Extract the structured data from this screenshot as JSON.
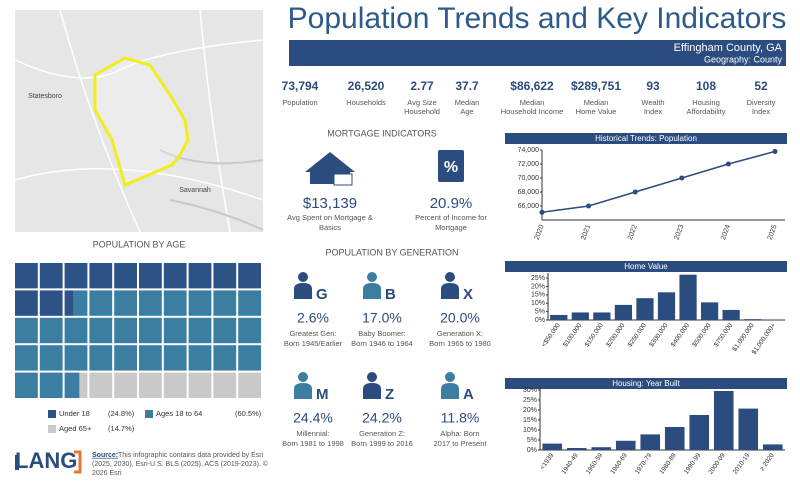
{
  "header": {
    "title": "Population Trends and Key Indicators",
    "location": "Effingham County, GA",
    "geography": "Geography: County"
  },
  "map": {
    "labels": [
      "Statesboro",
      "Savannah"
    ]
  },
  "indicators": [
    {
      "value": "73,794",
      "label": [
        "Population"
      ]
    },
    {
      "value": "26,520",
      "label": [
        "Households"
      ]
    },
    {
      "value": "2.77",
      "label": [
        "Avg Size",
        "Household"
      ]
    },
    {
      "value": "37.7",
      "label": [
        "Median",
        "Age"
      ]
    },
    {
      "value": "$86,622",
      "label": [
        "Median",
        "Household Income"
      ]
    },
    {
      "value": "$289,751",
      "label": [
        "Median",
        "Home Value"
      ]
    },
    {
      "value": "93",
      "label": [
        "Wealth",
        "Index"
      ]
    },
    {
      "value": "108",
      "label": [
        "Housing",
        "Affordability"
      ]
    },
    {
      "value": "52",
      "label": [
        "Diversity",
        "Index"
      ]
    }
  ],
  "mortgage": {
    "title": "MORTGAGE INDICATORS",
    "items": [
      {
        "value": "$13,139",
        "label": [
          "Avg Spent on Mortgage &",
          "Basics"
        ]
      },
      {
        "value": "20.9%",
        "label": [
          "Percent of Income for",
          "Mortgage"
        ]
      }
    ]
  },
  "generation": {
    "title": "POPULATION BY GENERATION",
    "items": [
      {
        "letter": "G",
        "value": "2.6%",
        "label": [
          "Greatest Gen:",
          "Born 1945/Earlier"
        ]
      },
      {
        "letter": "B",
        "value": "17.0%",
        "label": [
          "Baby Boomer:",
          "Born 1946 to 1964"
        ]
      },
      {
        "letter": "X",
        "value": "20.0%",
        "label": [
          "Generation X:",
          "Born 1965 to 1980"
        ]
      },
      {
        "letter": "M",
        "value": "24.4%",
        "label": [
          "Millennial:",
          "Born 1981 to 1998"
        ]
      },
      {
        "letter": "Z",
        "value": "24.2%",
        "label": [
          "Generation Z:",
          "Born 1999 to 2016"
        ]
      },
      {
        "letter": "A",
        "value": "11.8%",
        "label": [
          "Alpha:  Born",
          "2017 to Present"
        ]
      }
    ]
  },
  "footer": {
    "logo": "LANG",
    "source_label": "Source:",
    "source_lines": [
      " This infographic contains data provided by Esri",
      "(2025, 2030), Esri-U.S. BLS (2025), ACS (2019-2023). ©",
      "2026 Esri"
    ]
  },
  "chart_data": [
    {
      "type": "waffle",
      "title": "POPULATION BY AGE",
      "categories": [
        "Under 18",
        "Ages 18 to 64",
        "Aged 65+"
      ],
      "values": [
        24.8,
        60.5,
        14.7
      ],
      "value_labels": [
        "(24.8%)",
        "(60.5%)",
        "(14.7%)"
      ],
      "colors": [
        "#2d5386",
        "#3b7ea1",
        "#c9c9c9"
      ]
    },
    {
      "type": "line",
      "title": "Historical Trends: Population",
      "categories": [
        "2020",
        "2021",
        "2022",
        "2023",
        "2024",
        "2025"
      ],
      "values": [
        65100,
        66000,
        68000,
        70000,
        72000,
        73794
      ],
      "color": "#2b4c7e",
      "ylim": [
        64000,
        74000
      ],
      "yticks": [
        {
          "value": 66000,
          "label": "66,000"
        },
        {
          "value": 68000,
          "label": "68,000"
        },
        {
          "value": 70000,
          "label": "70,000"
        },
        {
          "value": 72000,
          "label": "72,000"
        },
        {
          "value": 74000,
          "label": "74,000"
        }
      ]
    },
    {
      "type": "bar",
      "title": "Home Value",
      "categories": [
        "<$50,000",
        "$100,000",
        "$150,000",
        "$200,000",
        "$250,000",
        "$300,000",
        "$400,000",
        "$500,000",
        "$750,000",
        "$1,000,000",
        "$1,000,000+"
      ],
      "values": [
        3,
        4.5,
        4.5,
        9,
        13,
        16.5,
        27,
        10.5,
        6,
        0.5,
        0.3
      ],
      "color": "#2b4c7e",
      "ylim": [
        0,
        28
      ],
      "yticks": [
        {
          "value": 0,
          "label": "0%"
        },
        {
          "value": 5,
          "label": "5%"
        },
        {
          "value": 10,
          "label": "10%"
        },
        {
          "value": 15,
          "label": "15%"
        },
        {
          "value": 20,
          "label": "20%"
        },
        {
          "value": 25,
          "label": "25%"
        }
      ]
    },
    {
      "type": "bar",
      "title": "Housing: Year Built",
      "categories": [
        "<1939",
        "1940-49",
        "1950-59",
        "1960-69",
        "1970-79",
        "1980-89",
        "1990-99",
        "2000-09",
        "2010-19",
        "≥ 2020"
      ],
      "values": [
        3.2,
        1,
        1.4,
        4.6,
        7.8,
        11.5,
        17.5,
        29.5,
        20.7,
        2.8
      ],
      "color": "#2b4c7e",
      "ylim": [
        0,
        31
      ],
      "yticks": [
        {
          "value": 0,
          "label": "0%"
        },
        {
          "value": 5,
          "label": "5%"
        },
        {
          "value": 10,
          "label": "10%"
        },
        {
          "value": 15,
          "label": "15%"
        },
        {
          "value": 20,
          "label": "20%"
        },
        {
          "value": 25,
          "label": "25%"
        },
        {
          "value": 30,
          "label": "30%"
        }
      ]
    }
  ]
}
